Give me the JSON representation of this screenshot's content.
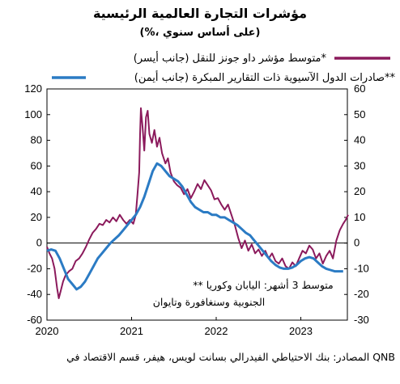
{
  "header": {
    "title": "مؤشرات التجارة العالمية الرئيسية",
    "subtitle": "(%، على أساس سنوي)"
  },
  "footer": {
    "source": "المصادر: بنك الاحتياطي الفيدرالي بسانت لويس، هيفر، قسم الاقتصاد في QNB"
  },
  "chart_data": {
    "type": "line",
    "x_range": [
      "2020-01",
      "2023-07"
    ],
    "x_ticks": [
      "2020",
      "2021",
      "2022",
      "2023"
    ],
    "y_left": {
      "ticks": [
        "120",
        "100",
        "80",
        "60",
        "40",
        "20",
        "0",
        "-20",
        "-40",
        "-60"
      ],
      "ylim": [
        -60,
        120
      ]
    },
    "y_right": {
      "ticks": [
        "60",
        "50",
        "40",
        "30",
        "20",
        "10",
        "0",
        "-10",
        "-20",
        "-30"
      ],
      "ylim": [
        -30,
        60
      ]
    },
    "colors": {
      "dow_jones": "#8b1a5c",
      "asian_exports": "#2b7bc4"
    },
    "legend": [
      {
        "key": "dow_jones",
        "label": "متوسط مؤشر داو جونز للنقل (جانب أيسر)*"
      },
      {
        "key": "asian_exports",
        "label": "صادرات الدول الآسيوية ذات التقارير المبكرة (جانب أيمن)**"
      }
    ],
    "annotation": {
      "line1": "** متوسط 3 أشهر: اليابان وكوريا",
      "line2": "الجنوبية وسنغافورة وتايوان"
    },
    "series": [
      {
        "key": "dow_jones",
        "axis": "left",
        "points": [
          [
            2020.0,
            -3
          ],
          [
            2020.03,
            -8
          ],
          [
            2020.06,
            -12
          ],
          [
            2020.09,
            -20
          ],
          [
            2020.12,
            -35
          ],
          [
            2020.14,
            -43
          ],
          [
            2020.16,
            -38
          ],
          [
            2020.19,
            -30
          ],
          [
            2020.22,
            -25
          ],
          [
            2020.26,
            -22
          ],
          [
            2020.3,
            -20
          ],
          [
            2020.34,
            -14
          ],
          [
            2020.38,
            -12
          ],
          [
            2020.42,
            -8
          ],
          [
            2020.46,
            -3
          ],
          [
            2020.5,
            3
          ],
          [
            2020.54,
            8
          ],
          [
            2020.58,
            11
          ],
          [
            2020.62,
            15
          ],
          [
            2020.66,
            14
          ],
          [
            2020.7,
            18
          ],
          [
            2020.74,
            16
          ],
          [
            2020.78,
            20
          ],
          [
            2020.82,
            17
          ],
          [
            2020.86,
            22
          ],
          [
            2020.9,
            18
          ],
          [
            2020.94,
            15
          ],
          [
            2020.98,
            18
          ],
          [
            2021.02,
            15
          ],
          [
            2021.05,
            22
          ],
          [
            2021.07,
            38
          ],
          [
            2021.09,
            55
          ],
          [
            2021.1,
            85
          ],
          [
            2021.11,
            105
          ],
          [
            2021.13,
            90
          ],
          [
            2021.15,
            72
          ],
          [
            2021.17,
            98
          ],
          [
            2021.19,
            103
          ],
          [
            2021.21,
            85
          ],
          [
            2021.24,
            78
          ],
          [
            2021.27,
            88
          ],
          [
            2021.3,
            75
          ],
          [
            2021.33,
            82
          ],
          [
            2021.36,
            70
          ],
          [
            2021.4,
            62
          ],
          [
            2021.43,
            66
          ],
          [
            2021.46,
            55
          ],
          [
            2021.5,
            48
          ],
          [
            2021.54,
            45
          ],
          [
            2021.58,
            43
          ],
          [
            2021.62,
            38
          ],
          [
            2021.66,
            42
          ],
          [
            2021.7,
            35
          ],
          [
            2021.74,
            40
          ],
          [
            2021.78,
            46
          ],
          [
            2021.82,
            42
          ],
          [
            2021.86,
            49
          ],
          [
            2021.9,
            45
          ],
          [
            2021.94,
            41
          ],
          [
            2021.98,
            34
          ],
          [
            2022.02,
            35
          ],
          [
            2022.06,
            30
          ],
          [
            2022.1,
            26
          ],
          [
            2022.14,
            30
          ],
          [
            2022.18,
            22
          ],
          [
            2022.22,
            14
          ],
          [
            2022.26,
            4
          ],
          [
            2022.3,
            -4
          ],
          [
            2022.34,
            2
          ],
          [
            2022.38,
            -6
          ],
          [
            2022.42,
            -1
          ],
          [
            2022.46,
            -8
          ],
          [
            2022.5,
            -5
          ],
          [
            2022.54,
            -10
          ],
          [
            2022.58,
            -6
          ],
          [
            2022.62,
            -12
          ],
          [
            2022.66,
            -8
          ],
          [
            2022.7,
            -14
          ],
          [
            2022.74,
            -16
          ],
          [
            2022.78,
            -12
          ],
          [
            2022.82,
            -18
          ],
          [
            2022.86,
            -20
          ],
          [
            2022.9,
            -15
          ],
          [
            2022.94,
            -18
          ],
          [
            2022.98,
            -12
          ],
          [
            2023.02,
            -6
          ],
          [
            2023.06,
            -8
          ],
          [
            2023.1,
            -2
          ],
          [
            2023.14,
            -5
          ],
          [
            2023.18,
            -12
          ],
          [
            2023.22,
            -8
          ],
          [
            2023.26,
            -16
          ],
          [
            2023.3,
            -10
          ],
          [
            2023.34,
            -6
          ],
          [
            2023.38,
            -12
          ],
          [
            2023.42,
            2
          ],
          [
            2023.46,
            10
          ],
          [
            2023.5,
            15
          ],
          [
            2023.53,
            18
          ],
          [
            2023.56,
            22
          ]
        ]
      },
      {
        "key": "asian_exports",
        "axis": "right",
        "points": [
          [
            2020.0,
            -3
          ],
          [
            2020.05,
            -2.5
          ],
          [
            2020.1,
            -3
          ],
          [
            2020.15,
            -6
          ],
          [
            2020.2,
            -10
          ],
          [
            2020.25,
            -14
          ],
          [
            2020.3,
            -16
          ],
          [
            2020.35,
            -18
          ],
          [
            2020.4,
            -17
          ],
          [
            2020.45,
            -15
          ],
          [
            2020.5,
            -12
          ],
          [
            2020.55,
            -9
          ],
          [
            2020.6,
            -6
          ],
          [
            2020.65,
            -4
          ],
          [
            2020.7,
            -2
          ],
          [
            2020.75,
            0
          ],
          [
            2020.8,
            1.5
          ],
          [
            2020.85,
            3
          ],
          [
            2020.9,
            5
          ],
          [
            2020.95,
            7
          ],
          [
            2021.0,
            9
          ],
          [
            2021.05,
            11
          ],
          [
            2021.1,
            14
          ],
          [
            2021.15,
            18
          ],
          [
            2021.2,
            23
          ],
          [
            2021.25,
            28
          ],
          [
            2021.3,
            31
          ],
          [
            2021.35,
            30
          ],
          [
            2021.4,
            28
          ],
          [
            2021.45,
            26
          ],
          [
            2021.5,
            25
          ],
          [
            2021.55,
            24
          ],
          [
            2021.6,
            22
          ],
          [
            2021.65,
            19
          ],
          [
            2021.7,
            16
          ],
          [
            2021.75,
            14
          ],
          [
            2021.8,
            13
          ],
          [
            2021.85,
            12
          ],
          [
            2021.9,
            12
          ],
          [
            2021.95,
            11
          ],
          [
            2022.0,
            11
          ],
          [
            2022.05,
            10
          ],
          [
            2022.1,
            10
          ],
          [
            2022.15,
            9
          ],
          [
            2022.2,
            8
          ],
          [
            2022.25,
            7
          ],
          [
            2022.3,
            5.5
          ],
          [
            2022.35,
            4
          ],
          [
            2022.4,
            3
          ],
          [
            2022.45,
            1
          ],
          [
            2022.5,
            -1
          ],
          [
            2022.55,
            -3
          ],
          [
            2022.6,
            -5
          ],
          [
            2022.65,
            -7
          ],
          [
            2022.7,
            -8.5
          ],
          [
            2022.75,
            -9.5
          ],
          [
            2022.8,
            -10
          ],
          [
            2022.85,
            -10
          ],
          [
            2022.9,
            -9.5
          ],
          [
            2022.95,
            -8.5
          ],
          [
            2023.0,
            -7
          ],
          [
            2023.05,
            -6
          ],
          [
            2023.1,
            -5.5
          ],
          [
            2023.15,
            -6
          ],
          [
            2023.2,
            -7.5
          ],
          [
            2023.25,
            -9
          ],
          [
            2023.3,
            -10
          ],
          [
            2023.35,
            -10.5
          ],
          [
            2023.4,
            -11
          ],
          [
            2023.45,
            -11
          ],
          [
            2023.5,
            -11
          ]
        ]
      }
    ]
  }
}
